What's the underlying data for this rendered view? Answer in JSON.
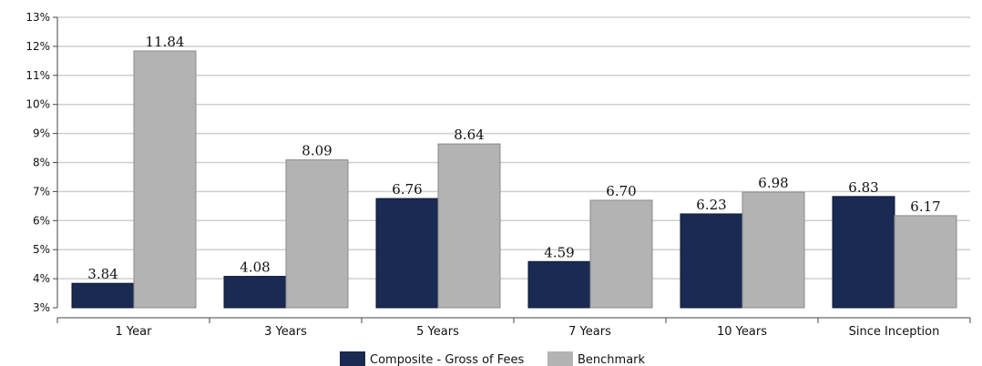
{
  "chart_data": {
    "type": "bar",
    "categories": [
      "1 Year",
      "3 Years",
      "5 Years",
      "7 Years",
      "10 Years",
      "Since Inception"
    ],
    "series": [
      {
        "name": "Composite - Gross of Fees",
        "color": "#1b2a52",
        "values": [
          3.84,
          4.08,
          6.76,
          4.59,
          6.23,
          6.83
        ]
      },
      {
        "name": "Benchmark",
        "color": "#b3b3b3",
        "values": [
          11.84,
          8.09,
          8.64,
          6.7,
          6.98,
          6.17
        ]
      }
    ],
    "value_labels": [
      [
        "3.84",
        "4.08",
        "6.76",
        "4.59",
        "6.23",
        "6.83"
      ],
      [
        "11.84",
        "8.09",
        "8.64",
        "6.70",
        "6.98",
        "6.17"
      ]
    ],
    "yticks": [
      3,
      4,
      5,
      6,
      7,
      8,
      9,
      10,
      11,
      12,
      13
    ],
    "ytick_labels": [
      "3%",
      "4%",
      "5%",
      "6%",
      "7%",
      "8%",
      "9%",
      "10%",
      "11%",
      "12%",
      "13%"
    ],
    "ylim": [
      3,
      13
    ],
    "grid": true,
    "legend": "bottom-center",
    "title": "",
    "xlabel": "",
    "ylabel": ""
  }
}
